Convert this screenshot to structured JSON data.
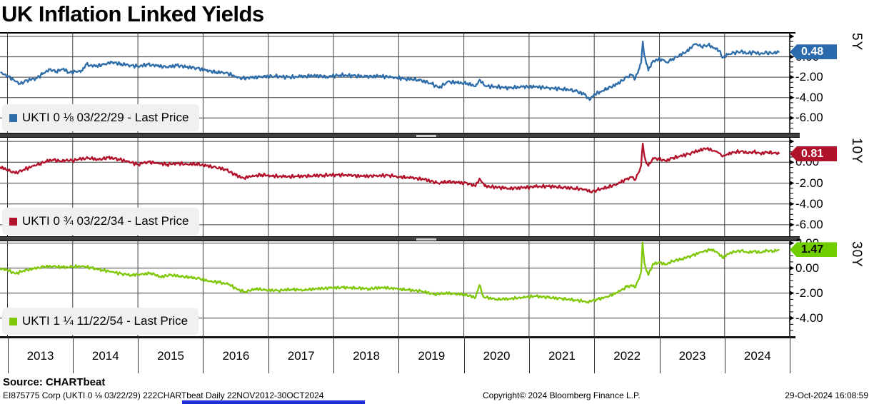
{
  "title": "UK Inflation Linked Yields",
  "footer": {
    "source": "Source: CHARTbeat",
    "meta": "EI875775 Corp (UKTI 0 ⅛ 03/22/29) 222CHARTbeat  Daily 22NOV2012-30OCT2024",
    "copyright": "Copyright© 2024 Bloomberg Finance L.P.",
    "timestamp": "29-Oct-2024 16:08:59"
  },
  "x_axis": {
    "year_labels": [
      "2013",
      "2014",
      "2015",
      "2016",
      "2017",
      "2018",
      "2019",
      "2020",
      "2021",
      "2022",
      "2023",
      "2024"
    ],
    "range_start": 2012.89,
    "range_end": 2025.0
  },
  "chart_data": [
    {
      "type": "line",
      "axis_label": "5Y",
      "legend": "UKTI 0 ⅛ 03/22/29 - Last Price",
      "color": "#2f6da8",
      "badge_color": "#2a6aad",
      "badge_text_color": "#ffffff",
      "last_price": "0.48",
      "ylim": [
        -7.45,
        2.35
      ],
      "yticks": [
        {
          "v": 2,
          "label": ""
        },
        {
          "v": 0,
          "label": "0.00"
        },
        {
          "v": -2,
          "label": "-2.00"
        },
        {
          "v": -4,
          "label": "-4.00"
        },
        {
          "v": -6,
          "label": "-6.00"
        }
      ],
      "points": [
        [
          2012.89,
          -1.55
        ],
        [
          2013.0,
          -1.9
        ],
        [
          2013.1,
          -2.3
        ],
        [
          2013.2,
          -2.65
        ],
        [
          2013.3,
          -2.3
        ],
        [
          2013.45,
          -2.1
        ],
        [
          2013.55,
          -1.6
        ],
        [
          2013.65,
          -1.25
        ],
        [
          2013.75,
          -1.45
        ],
        [
          2013.85,
          -1.2
        ],
        [
          2013.95,
          -1.55
        ],
        [
          2014.05,
          -1.45
        ],
        [
          2014.15,
          -1.35
        ],
        [
          2014.2,
          -0.75
        ],
        [
          2014.35,
          -0.95
        ],
        [
          2014.5,
          -0.7
        ],
        [
          2014.6,
          -0.55
        ],
        [
          2014.75,
          -0.7
        ],
        [
          2014.9,
          -0.85
        ],
        [
          2015.0,
          -0.95
        ],
        [
          2015.15,
          -0.75
        ],
        [
          2015.3,
          -0.9
        ],
        [
          2015.45,
          -1.0
        ],
        [
          2015.6,
          -0.85
        ],
        [
          2015.75,
          -1.0
        ],
        [
          2015.9,
          -1.1
        ],
        [
          2016.05,
          -1.35
        ],
        [
          2016.2,
          -1.5
        ],
        [
          2016.35,
          -1.55
        ],
        [
          2016.5,
          -1.95
        ],
        [
          2016.6,
          -2.1
        ],
        [
          2016.75,
          -2.05
        ],
        [
          2016.9,
          -1.95
        ],
        [
          2017.1,
          -1.9
        ],
        [
          2017.3,
          -2.0
        ],
        [
          2017.5,
          -1.95
        ],
        [
          2017.7,
          -1.85
        ],
        [
          2017.9,
          -1.95
        ],
        [
          2018.1,
          -1.8
        ],
        [
          2018.3,
          -1.85
        ],
        [
          2018.5,
          -1.95
        ],
        [
          2018.7,
          -1.9
        ],
        [
          2018.9,
          -2.0
        ],
        [
          2019.1,
          -2.15
        ],
        [
          2019.3,
          -2.25
        ],
        [
          2019.5,
          -2.6
        ],
        [
          2019.62,
          -3.05
        ],
        [
          2019.75,
          -2.45
        ],
        [
          2019.9,
          -2.55
        ],
        [
          2020.05,
          -2.6
        ],
        [
          2020.18,
          -2.9
        ],
        [
          2020.24,
          -2.25
        ],
        [
          2020.32,
          -2.85
        ],
        [
          2020.5,
          -2.95
        ],
        [
          2020.7,
          -3.05
        ],
        [
          2020.9,
          -2.95
        ],
        [
          2021.1,
          -2.95
        ],
        [
          2021.3,
          -3.05
        ],
        [
          2021.5,
          -3.15
        ],
        [
          2021.7,
          -3.3
        ],
        [
          2021.85,
          -3.7
        ],
        [
          2021.93,
          -4.25
        ],
        [
          2022.0,
          -3.65
        ],
        [
          2022.1,
          -3.45
        ],
        [
          2022.2,
          -3.1
        ],
        [
          2022.35,
          -2.7
        ],
        [
          2022.5,
          -2.0
        ],
        [
          2022.57,
          -1.75
        ],
        [
          2022.63,
          -2.15
        ],
        [
          2022.68,
          -1.3
        ],
        [
          2022.72,
          -0.6
        ],
        [
          2022.745,
          1.5
        ],
        [
          2022.77,
          0.1
        ],
        [
          2022.8,
          -0.7
        ],
        [
          2022.83,
          -1.35
        ],
        [
          2022.88,
          -0.6
        ],
        [
          2022.95,
          -0.25
        ],
        [
          2023.05,
          -0.3
        ],
        [
          2023.12,
          -0.55
        ],
        [
          2023.2,
          -0.2
        ],
        [
          2023.3,
          0.1
        ],
        [
          2023.42,
          0.55
        ],
        [
          2023.55,
          1.25
        ],
        [
          2023.65,
          1.0
        ],
        [
          2023.75,
          1.15
        ],
        [
          2023.85,
          0.85
        ],
        [
          2023.92,
          0.6
        ],
        [
          2023.97,
          -0.1
        ],
        [
          2024.05,
          0.2
        ],
        [
          2024.15,
          0.4
        ],
        [
          2024.25,
          0.5
        ],
        [
          2024.35,
          0.35
        ],
        [
          2024.45,
          0.45
        ],
        [
          2024.55,
          0.3
        ],
        [
          2024.65,
          0.4
        ],
        [
          2024.75,
          0.35
        ],
        [
          2024.84,
          0.48
        ]
      ]
    },
    {
      "type": "line",
      "axis_label": "10Y",
      "legend": "UKTI 0 ¾ 03/22/34 - Last Price",
      "color": "#b2122b",
      "badge_color": "#b0122c",
      "badge_text_color": "#ffffff",
      "last_price": "0.81",
      "ylim": [
        -7.1,
        2.35
      ],
      "yticks": [
        {
          "v": 2,
          "label": ""
        },
        {
          "v": 0,
          "label": "0.00"
        },
        {
          "v": -2,
          "label": "-2.00"
        },
        {
          "v": -4,
          "label": "-4.00"
        },
        {
          "v": -6,
          "label": "-6.00"
        }
      ],
      "points": [
        [
          2012.89,
          -0.45
        ],
        [
          2013.0,
          -0.75
        ],
        [
          2013.12,
          -1.05
        ],
        [
          2013.25,
          -0.7
        ],
        [
          2013.4,
          -0.35
        ],
        [
          2013.5,
          -0.15
        ],
        [
          2013.6,
          0.1
        ],
        [
          2013.7,
          0.25
        ],
        [
          2013.8,
          0.1
        ],
        [
          2013.9,
          0.2
        ],
        [
          2014.0,
          0.15
        ],
        [
          2014.1,
          0.3
        ],
        [
          2014.25,
          0.4
        ],
        [
          2014.4,
          0.25
        ],
        [
          2014.55,
          0.45
        ],
        [
          2014.7,
          0.3
        ],
        [
          2014.85,
          0.05
        ],
        [
          2015.0,
          -0.2
        ],
        [
          2015.15,
          0.05
        ],
        [
          2015.3,
          -0.1
        ],
        [
          2015.45,
          -0.2
        ],
        [
          2015.6,
          -0.1
        ],
        [
          2015.75,
          -0.2
        ],
        [
          2015.9,
          -0.15
        ],
        [
          2016.05,
          -0.35
        ],
        [
          2016.2,
          -0.5
        ],
        [
          2016.35,
          -0.7
        ],
        [
          2016.5,
          -1.25
        ],
        [
          2016.62,
          -1.5
        ],
        [
          2016.75,
          -1.35
        ],
        [
          2016.9,
          -1.2
        ],
        [
          2017.05,
          -1.3
        ],
        [
          2017.25,
          -1.4
        ],
        [
          2017.45,
          -1.35
        ],
        [
          2017.65,
          -1.3
        ],
        [
          2017.85,
          -1.25
        ],
        [
          2018.05,
          -1.2
        ],
        [
          2018.25,
          -1.25
        ],
        [
          2018.45,
          -1.35
        ],
        [
          2018.65,
          -1.3
        ],
        [
          2018.85,
          -1.25
        ],
        [
          2019.0,
          -1.4
        ],
        [
          2019.2,
          -1.5
        ],
        [
          2019.4,
          -1.65
        ],
        [
          2019.6,
          -2.0
        ],
        [
          2019.75,
          -1.85
        ],
        [
          2019.9,
          -1.95
        ],
        [
          2020.05,
          -2.0
        ],
        [
          2020.18,
          -2.3
        ],
        [
          2020.24,
          -1.55
        ],
        [
          2020.32,
          -2.3
        ],
        [
          2020.5,
          -2.4
        ],
        [
          2020.7,
          -2.5
        ],
        [
          2020.9,
          -2.45
        ],
        [
          2021.1,
          -2.35
        ],
        [
          2021.3,
          -2.3
        ],
        [
          2021.5,
          -2.4
        ],
        [
          2021.7,
          -2.5
        ],
        [
          2021.85,
          -2.6
        ],
        [
          2021.95,
          -2.85
        ],
        [
          2022.05,
          -2.65
        ],
        [
          2022.2,
          -2.4
        ],
        [
          2022.35,
          -2.1
        ],
        [
          2022.5,
          -1.6
        ],
        [
          2022.57,
          -1.4
        ],
        [
          2022.63,
          -1.7
        ],
        [
          2022.68,
          -1.0
        ],
        [
          2022.72,
          -0.3
        ],
        [
          2022.745,
          1.8
        ],
        [
          2022.77,
          0.6
        ],
        [
          2022.8,
          -0.1
        ],
        [
          2022.83,
          -0.35
        ],
        [
          2022.9,
          0.4
        ],
        [
          2023.0,
          0.3
        ],
        [
          2023.1,
          0.15
        ],
        [
          2023.2,
          0.4
        ],
        [
          2023.3,
          0.55
        ],
        [
          2023.45,
          0.8
        ],
        [
          2023.6,
          1.15
        ],
        [
          2023.72,
          1.3
        ],
        [
          2023.85,
          1.1
        ],
        [
          2023.92,
          0.85
        ],
        [
          2023.97,
          0.55
        ],
        [
          2024.05,
          0.8
        ],
        [
          2024.15,
          0.95
        ],
        [
          2024.25,
          1.05
        ],
        [
          2024.35,
          0.9
        ],
        [
          2024.45,
          1.0
        ],
        [
          2024.55,
          0.85
        ],
        [
          2024.65,
          0.95
        ],
        [
          2024.75,
          0.9
        ],
        [
          2024.84,
          0.81
        ]
      ]
    },
    {
      "type": "line",
      "axis_label": "30Y",
      "legend": "UKTI 1 ¼ 11/22/54 - Last Price",
      "color": "#7fc709",
      "badge_color": "#70cd00",
      "badge_text_color": "#000000",
      "last_price": "1.47",
      "ylim": [
        -5.45,
        2.15
      ],
      "yticks": [
        {
          "v": 2,
          "label": "2.00"
        },
        {
          "v": 0,
          "label": "0.00"
        },
        {
          "v": -2,
          "label": "-2.00"
        },
        {
          "v": -4,
          "label": "-4.00"
        }
      ],
      "points": [
        [
          2012.89,
          -0.05
        ],
        [
          2013.0,
          -0.15
        ],
        [
          2013.12,
          -0.45
        ],
        [
          2013.25,
          -0.2
        ],
        [
          2013.4,
          -0.05
        ],
        [
          2013.55,
          0.1
        ],
        [
          2013.7,
          0.15
        ],
        [
          2013.85,
          0.05
        ],
        [
          2014.0,
          0.1
        ],
        [
          2014.15,
          0.15
        ],
        [
          2014.3,
          0.0
        ],
        [
          2014.45,
          -0.15
        ],
        [
          2014.6,
          -0.3
        ],
        [
          2014.75,
          -0.45
        ],
        [
          2014.9,
          -0.55
        ],
        [
          2015.05,
          -0.5
        ],
        [
          2015.2,
          -0.4
        ],
        [
          2015.35,
          -0.7
        ],
        [
          2015.5,
          -0.55
        ],
        [
          2015.65,
          -0.65
        ],
        [
          2015.8,
          -0.75
        ],
        [
          2015.95,
          -0.85
        ],
        [
          2016.1,
          -1.05
        ],
        [
          2016.25,
          -1.15
        ],
        [
          2016.4,
          -1.3
        ],
        [
          2016.52,
          -1.7
        ],
        [
          2016.65,
          -1.9
        ],
        [
          2016.8,
          -1.65
        ],
        [
          2016.95,
          -1.75
        ],
        [
          2017.15,
          -1.8
        ],
        [
          2017.35,
          -1.7
        ],
        [
          2017.55,
          -1.75
        ],
        [
          2017.75,
          -1.65
        ],
        [
          2017.95,
          -1.6
        ],
        [
          2018.15,
          -1.55
        ],
        [
          2018.35,
          -1.6
        ],
        [
          2018.55,
          -1.65
        ],
        [
          2018.75,
          -1.55
        ],
        [
          2018.95,
          -1.65
        ],
        [
          2019.15,
          -1.75
        ],
        [
          2019.35,
          -1.85
        ],
        [
          2019.55,
          -2.1
        ],
        [
          2019.7,
          -2.0
        ],
        [
          2019.85,
          -2.05
        ],
        [
          2020.0,
          -2.1
        ],
        [
          2020.18,
          -2.35
        ],
        [
          2020.24,
          -1.35
        ],
        [
          2020.3,
          -2.3
        ],
        [
          2020.5,
          -2.5
        ],
        [
          2020.7,
          -2.45
        ],
        [
          2020.9,
          -2.35
        ],
        [
          2021.1,
          -2.25
        ],
        [
          2021.3,
          -2.35
        ],
        [
          2021.5,
          -2.45
        ],
        [
          2021.7,
          -2.55
        ],
        [
          2021.9,
          -2.7
        ],
        [
          2022.05,
          -2.5
        ],
        [
          2022.2,
          -2.3
        ],
        [
          2022.35,
          -1.95
        ],
        [
          2022.5,
          -1.5
        ],
        [
          2022.57,
          -1.35
        ],
        [
          2022.63,
          -1.55
        ],
        [
          2022.68,
          -0.9
        ],
        [
          2022.72,
          -0.3
        ],
        [
          2022.74,
          2.05
        ],
        [
          2022.77,
          0.4
        ],
        [
          2022.8,
          -0.2
        ],
        [
          2022.83,
          -0.55
        ],
        [
          2022.9,
          0.35
        ],
        [
          2023.0,
          0.45
        ],
        [
          2023.1,
          0.3
        ],
        [
          2023.2,
          0.55
        ],
        [
          2023.35,
          0.75
        ],
        [
          2023.5,
          1.0
        ],
        [
          2023.65,
          1.3
        ],
        [
          2023.8,
          1.5
        ],
        [
          2023.9,
          1.2
        ],
        [
          2023.97,
          0.8
        ],
        [
          2024.05,
          1.15
        ],
        [
          2024.15,
          1.3
        ],
        [
          2024.25,
          1.4
        ],
        [
          2024.35,
          1.25
        ],
        [
          2024.45,
          1.35
        ],
        [
          2024.55,
          1.25
        ],
        [
          2024.65,
          1.4
        ],
        [
          2024.75,
          1.35
        ],
        [
          2024.84,
          1.47
        ]
      ]
    }
  ]
}
